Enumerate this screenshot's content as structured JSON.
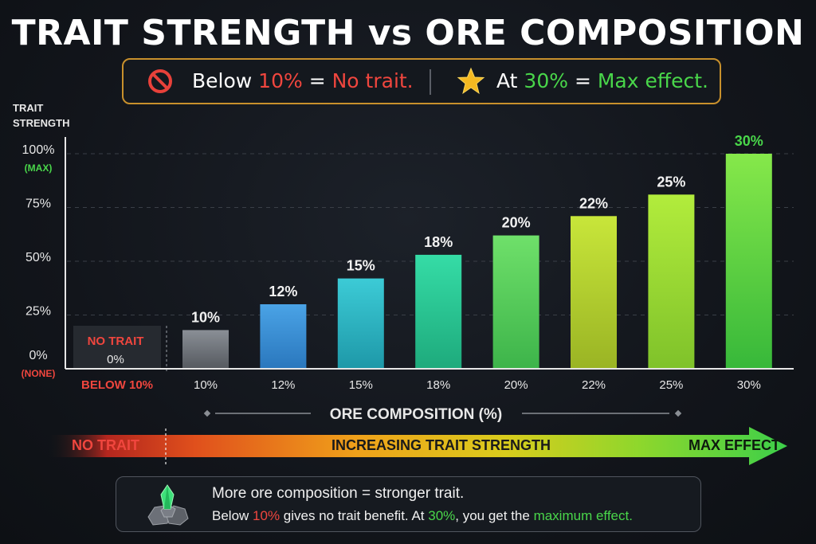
{
  "title": "TRAIT STRENGTH vs ORE COMPOSITION",
  "rules": {
    "left_prefix": "Below ",
    "left_highlight": "10%",
    "left_eq": " = ",
    "left_result": "No trait.",
    "right_prefix": "At ",
    "right_highlight": "30%",
    "right_eq": " = ",
    "right_result": "Max effect."
  },
  "icons": {
    "no_icon": "prohibited-icon",
    "star_icon": "star-icon",
    "ore_icon": "ore-gem-icon"
  },
  "colors": {
    "red": "#f0463e",
    "green": "#49d64a",
    "gold": "#c8902c"
  },
  "chart_data": {
    "type": "bar",
    "ylabel_line1": "TRAIT",
    "ylabel_line2": "STRENGTH",
    "xlabel": "ORE COMPOSITION (%)",
    "ylim": [
      0,
      100
    ],
    "y_ticks": [
      {
        "value": 100,
        "label": "100%",
        "sub": "(MAX)"
      },
      {
        "value": 75,
        "label": "75%",
        "sub": ""
      },
      {
        "value": 50,
        "label": "50%",
        "sub": ""
      },
      {
        "value": 25,
        "label": "25%",
        "sub": ""
      },
      {
        "value": 0,
        "label": "0%",
        "sub": "(NONE)"
      }
    ],
    "no_trait_region": {
      "title": "NO TRAIT",
      "value_label": "0%",
      "category": "BELOW 10%"
    },
    "categories": [
      "10%",
      "12%",
      "15%",
      "18%",
      "20%",
      "22%",
      "25%",
      "30%"
    ],
    "values": [
      18,
      30,
      42,
      53,
      62,
      71,
      81,
      100
    ],
    "value_labels": [
      "10%",
      "12%",
      "15%",
      "18%",
      "20%",
      "22%",
      "25%",
      "30%"
    ],
    "bar_colors_top": [
      "#8a8f96",
      "#4aa3e6",
      "#3ccbd6",
      "#35dca6",
      "#6fe06a",
      "#c8e63a",
      "#b2ec3c",
      "#86e84a"
    ],
    "bar_colors_bottom": [
      "#55595f",
      "#2a77bd",
      "#1e98a8",
      "#1eaa7c",
      "#3db44a",
      "#9ab424",
      "#7fc22a",
      "#37b83a"
    ],
    "grid": true,
    "legend": "none"
  },
  "progress": {
    "left_label": "NO TRAIT",
    "middle_label": "INCREASING TRAIT STRENGTH",
    "right_label": "MAX EFFECT"
  },
  "info": {
    "line1": "More ore composition = stronger trait.",
    "line2_a": "Below ",
    "line2_b": "10%",
    "line2_c": " gives no trait benefit. At ",
    "line2_d": "30%",
    "line2_e": ", you get the ",
    "line2_f": "maximum effect."
  }
}
